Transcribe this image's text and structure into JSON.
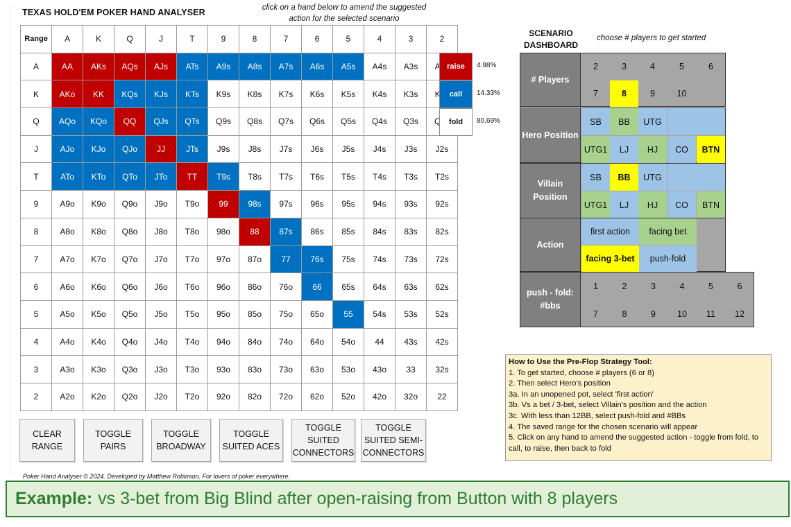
{
  "app_title": "TEXAS HOLD'EM POKER HAND ANALYSER",
  "grid_hint": "click on a hand below to amend the suggested action for the selected scenario",
  "colors": {
    "raise": "#c00000",
    "call": "#0070c0",
    "fold": "#ffffff",
    "selected": "#ffff00",
    "green": "#a9d18e",
    "blue": "#9dc3e6",
    "gray": "#a6a6a6"
  },
  "range_grid": {
    "corner_label": "Range",
    "ranks": [
      "A",
      "K",
      "Q",
      "J",
      "T",
      "9",
      "8",
      "7",
      "6",
      "5",
      "4",
      "3",
      "2"
    ],
    "hands": [
      [
        "AA",
        "AKs",
        "AQs",
        "AJs",
        "ATs",
        "A9s",
        "A8s",
        "A7s",
        "A6s",
        "A5s",
        "A4s",
        "A3s",
        "A2s"
      ],
      [
        "AKo",
        "KK",
        "KQs",
        "KJs",
        "KTs",
        "K9s",
        "K8s",
        "K7s",
        "K6s",
        "K5s",
        "K4s",
        "K3s",
        "K2s"
      ],
      [
        "AQo",
        "KQo",
        "QQ",
        "QJs",
        "QTs",
        "Q9s",
        "Q8s",
        "Q7s",
        "Q6s",
        "Q5s",
        "Q4s",
        "Q3s",
        "Q2s"
      ],
      [
        "AJo",
        "KJo",
        "QJo",
        "JJ",
        "JTs",
        "J9s",
        "J8s",
        "J7s",
        "J6s",
        "J5s",
        "J4s",
        "J3s",
        "J2s"
      ],
      [
        "ATo",
        "KTo",
        "QTo",
        "JTo",
        "TT",
        "T9s",
        "T8s",
        "T7s",
        "T6s",
        "T5s",
        "T4s",
        "T3s",
        "T2s"
      ],
      [
        "A9o",
        "K9o",
        "Q9o",
        "J9o",
        "T9o",
        "99",
        "98s",
        "97s",
        "96s",
        "95s",
        "94s",
        "93s",
        "92s"
      ],
      [
        "A8o",
        "K8o",
        "Q8o",
        "J8o",
        "T8o",
        "98o",
        "88",
        "87s",
        "86s",
        "85s",
        "84s",
        "83s",
        "82s"
      ],
      [
        "A7o",
        "K7o",
        "Q7o",
        "J7o",
        "T7o",
        "97o",
        "87o",
        "77",
        "76s",
        "75s",
        "74s",
        "73s",
        "72s"
      ],
      [
        "A6o",
        "K6o",
        "Q6o",
        "J6o",
        "T6o",
        "96o",
        "86o",
        "76o",
        "66",
        "65s",
        "64s",
        "63s",
        "62s"
      ],
      [
        "A5o",
        "K5o",
        "Q5o",
        "J5o",
        "T5o",
        "95o",
        "85o",
        "75o",
        "65o",
        "55",
        "54s",
        "53s",
        "52s"
      ],
      [
        "A4o",
        "K4o",
        "Q4o",
        "J4o",
        "T4o",
        "94o",
        "84o",
        "74o",
        "64o",
        "54o",
        "44",
        "43s",
        "42s"
      ],
      [
        "A3o",
        "K3o",
        "Q3o",
        "J3o",
        "T3o",
        "93o",
        "83o",
        "73o",
        "63o",
        "53o",
        "43o",
        "33",
        "32s"
      ],
      [
        "A2o",
        "K2o",
        "Q2o",
        "J2o",
        "T2o",
        "92o",
        "82o",
        "72o",
        "62o",
        "52o",
        "42o",
        "32o",
        "22"
      ]
    ],
    "actions": [
      [
        "R",
        "R",
        "R",
        "R",
        "C",
        "C",
        "C",
        "C",
        "C",
        "C",
        "F",
        "F",
        "F"
      ],
      [
        "R",
        "R",
        "C",
        "C",
        "C",
        "F",
        "F",
        "F",
        "F",
        "F",
        "F",
        "F",
        "F"
      ],
      [
        "C",
        "C",
        "R",
        "C",
        "C",
        "F",
        "F",
        "F",
        "F",
        "F",
        "F",
        "F",
        "F"
      ],
      [
        "C",
        "C",
        "C",
        "R",
        "C",
        "F",
        "F",
        "F",
        "F",
        "F",
        "F",
        "F",
        "F"
      ],
      [
        "C",
        "C",
        "C",
        "C",
        "R",
        "C",
        "F",
        "F",
        "F",
        "F",
        "F",
        "F",
        "F"
      ],
      [
        "F",
        "F",
        "F",
        "F",
        "F",
        "R",
        "C",
        "F",
        "F",
        "F",
        "F",
        "F",
        "F"
      ],
      [
        "F",
        "F",
        "F",
        "F",
        "F",
        "F",
        "R",
        "C",
        "F",
        "F",
        "F",
        "F",
        "F"
      ],
      [
        "F",
        "F",
        "F",
        "F",
        "F",
        "F",
        "F",
        "C",
        "C",
        "F",
        "F",
        "F",
        "F"
      ],
      [
        "F",
        "F",
        "F",
        "F",
        "F",
        "F",
        "F",
        "F",
        "C",
        "F",
        "F",
        "F",
        "F"
      ],
      [
        "F",
        "F",
        "F",
        "F",
        "F",
        "F",
        "F",
        "F",
        "F",
        "C",
        "F",
        "F",
        "F"
      ],
      [
        "F",
        "F",
        "F",
        "F",
        "F",
        "F",
        "F",
        "F",
        "F",
        "F",
        "F",
        "F",
        "F"
      ],
      [
        "F",
        "F",
        "F",
        "F",
        "F",
        "F",
        "F",
        "F",
        "F",
        "F",
        "F",
        "F",
        "F"
      ],
      [
        "F",
        "F",
        "F",
        "F",
        "F",
        "F",
        "F",
        "F",
        "F",
        "F",
        "F",
        "F",
        "F"
      ]
    ]
  },
  "legend": [
    {
      "label": "raise",
      "pct": "4.98%"
    },
    {
      "label": "call",
      "pct": "14.33%"
    },
    {
      "label": "fold",
      "pct": "80.69%"
    }
  ],
  "dashboard": {
    "title": "SCENARIO DASHBOARD",
    "hint": "choose # players to get started",
    "players": {
      "label": "# Players",
      "options": [
        "2",
        "3",
        "4",
        "5",
        "6",
        "7",
        "8",
        "9",
        "10"
      ],
      "selected": "8"
    },
    "hero": {
      "label": "Hero Position",
      "options": [
        "SB",
        "BB",
        "UTG",
        "",
        "UTG1",
        "LJ",
        "HJ",
        "CO",
        "BTN"
      ],
      "selected": "BTN"
    },
    "villain": {
      "label": "Villain Position",
      "options": [
        "SB",
        "BB",
        "UTG",
        "",
        "UTG1",
        "LJ",
        "HJ",
        "CO",
        "BTN"
      ],
      "selected": "BB"
    },
    "action": {
      "label": "Action",
      "options": [
        "first action",
        "facing bet",
        "facing 3-bet",
        "push-fold"
      ],
      "selected": "facing 3-bet"
    },
    "pushfold": {
      "label": "push - fold: #bbs",
      "options": [
        "1",
        "2",
        "3",
        "4",
        "5",
        "6",
        "7",
        "8",
        "9",
        "10",
        "11",
        "12"
      ]
    }
  },
  "instructions": {
    "title": "How to Use the Pre-Flop Strategy Tool:",
    "lines": [
      "1. To get started, choose # players (6 or 8)",
      "2. Then select Hero's position",
      "3a. In an unopened pot, select 'first action'",
      "3b. Vs a bet / 3-bet, select Villain's position and the action",
      "3c. With less than 12BB, select push-fold and #BBs",
      "4. The saved range for the chosen scenario will appear",
      "5. Click on any hand to amend the suggested action - toggle from fold, to call, to raise, then back to fold"
    ]
  },
  "buttons": [
    "CLEAR RANGE",
    "TOGGLE PAIRS",
    "TOGGLE BROADWAY",
    "TOGGLE SUITED ACES",
    "TOGGLE SUITED CONNECTORS",
    "TOGGLE SUITED SEMI-CONNECTORS"
  ],
  "copyright": "Poker Hand Analyser © 2024. Developed by Matthew Robinson. For lovers of poker everywhere.",
  "example": {
    "label": "Example:",
    "text": "vs 3-bet from Big Blind after open-raising from Button with 8 players"
  }
}
